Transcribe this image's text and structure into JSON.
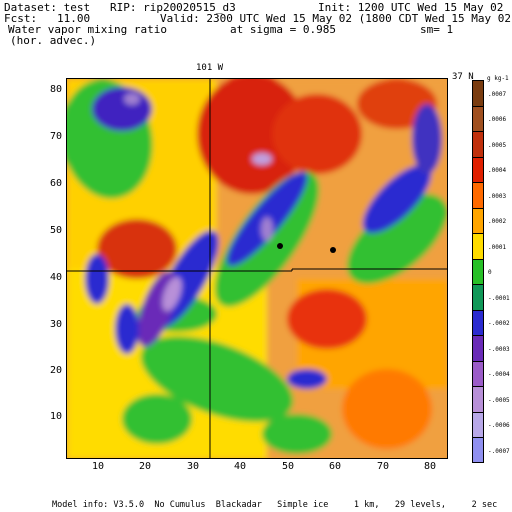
{
  "header": {
    "dataset": "Dataset: test   RIP: rip20020515_d3",
    "init": "Init: 1200 UTC Wed 15 May 02",
    "fcst": "Fcst:   11.00",
    "valid": "Valid: 2300 UTC Wed 15 May 02 (1800 CDT Wed 15 May 02)",
    "field": "Water vapor mixing ratio",
    "sigma": "at sigma = 0.985",
    "sm": "sm= 1",
    "advec": "(hor. advec.)"
  },
  "map": {
    "lon_label": "101 W",
    "lat_label": "37 N",
    "units": "g kg-1",
    "x_ticks": [
      "10",
      "20",
      "30",
      "40",
      "50",
      "60",
      "70",
      "80"
    ],
    "y_ticks": [
      "10",
      "20",
      "30",
      "40",
      "50",
      "60",
      "70",
      "80"
    ]
  },
  "colorbar": {
    "labels": [
      ".0007",
      ".0006",
      ".0005",
      ".0004",
      ".0003",
      ".0002",
      ".0001",
      "0",
      "-.0001",
      "-.0002",
      "-.0003",
      "-.0004",
      "-.0005",
      "-.0006",
      "-.0007"
    ],
    "colors": [
      "#7a3c10",
      "#a05020",
      "#c0300c",
      "#e02000",
      "#ff6a00",
      "#ffa500",
      "#ffdc00",
      "#28c028",
      "#109858",
      "#2b2bd0",
      "#6a2bb8",
      "#9b5cc8",
      "#b890d8",
      "#b8a8e8",
      "#9090f0"
    ]
  },
  "footer": {
    "model": "Model info: V3.5.0  No Cumulus  Blackadar   Simple ice     1 km,   29 levels,     2 sec"
  }
}
